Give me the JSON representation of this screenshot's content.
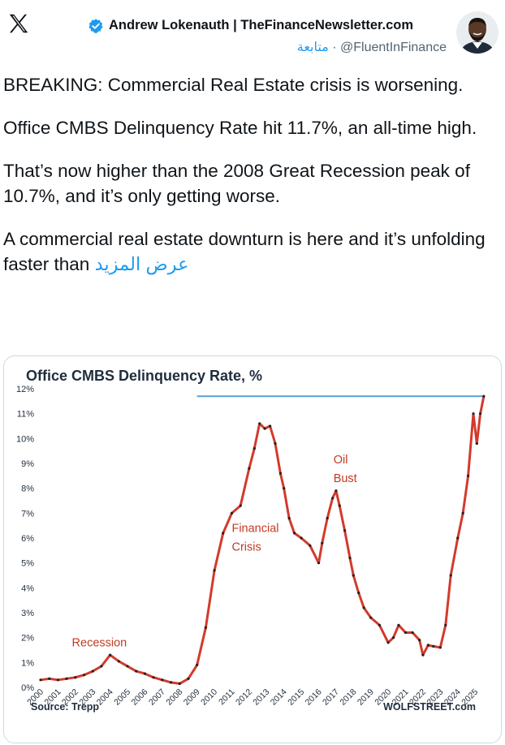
{
  "header": {
    "logo_icon": "x-logo-icon",
    "author_name": "Andrew Lokenauth | TheFinanceNewsletter.com",
    "verified_icon": "verified-badge-icon",
    "follow_label": "متابعة",
    "separator": "·",
    "handle": "@FluentInFinance"
  },
  "tweet": {
    "paragraphs": [
      "BREAKING: Commercial Real Estate crisis is worsening.",
      "Office CMBS Delinquency Rate hit 11.7%, an all-time high.",
      "That’s now higher than the 2008 Great Recession peak of 10.7%, and it’s only getting worse."
    ],
    "last_paragraph": "A commercial real estate downturn is here and it’s unfolding faster than",
    "show_more_label": "عرض المزيد"
  },
  "colors": {
    "brand_blue": "#1d9bf0",
    "series_red": "#d33a2c",
    "annotation_red": "#c23b22",
    "ref_line": "#5aa0d6"
  },
  "chart_data": {
    "type": "line",
    "title": "Office CMBS Delinquency Rate, %",
    "xlabel": "",
    "ylabel": "",
    "ylim": [
      0,
      12
    ],
    "xlim": [
      2000,
      2025.6
    ],
    "yticks": [
      "0%",
      "1%",
      "2%",
      "3%",
      "4%",
      "5%",
      "6%",
      "7%",
      "8%",
      "9%",
      "10%",
      "11%",
      "12%"
    ],
    "xticks": [
      "2000",
      "2001",
      "2002",
      "2003",
      "2004",
      "2005",
      "2006",
      "2007",
      "2008",
      "2009",
      "2010",
      "2011",
      "2012",
      "2013",
      "2014",
      "2015",
      "2016",
      "2017",
      "2018",
      "2019",
      "2020",
      "2021",
      "2022",
      "2023",
      "2024",
      "2025"
    ],
    "grid": false,
    "reference_line": {
      "value": 11.7,
      "from": 2009.0,
      "to": 2025.5
    },
    "annotations": [
      {
        "text": "Recession",
        "x": 2001.8,
        "y": 1.65
      },
      {
        "text": "Financial",
        "x": 2011.0,
        "y": 6.25
      },
      {
        "text": "Crisis",
        "x": 2011.0,
        "y": 5.5
      },
      {
        "text": "Oil",
        "x": 2016.85,
        "y": 9.0
      },
      {
        "text": "Bust",
        "x": 2016.85,
        "y": 8.25
      }
    ],
    "source": "Source: Trepp",
    "credit": "WOLFSTREET.com",
    "series": [
      {
        "name": "Office CMBS Delinquency Rate",
        "x": [
          2000.0,
          2000.5,
          2001.0,
          2001.5,
          2002.0,
          2002.5,
          2003.0,
          2003.5,
          2004.0,
          2004.5,
          2005.0,
          2005.5,
          2006.0,
          2006.5,
          2007.0,
          2007.5,
          2008.0,
          2008.5,
          2009.0,
          2009.5,
          2010.0,
          2010.5,
          2011.0,
          2011.5,
          2012.0,
          2012.3,
          2012.6,
          2012.9,
          2013.2,
          2013.5,
          2013.8,
          2014.0,
          2014.3,
          2014.6,
          2015.0,
          2015.5,
          2016.0,
          2016.2,
          2016.5,
          2016.8,
          2017.0,
          2017.2,
          2017.5,
          2017.8,
          2018.0,
          2018.3,
          2018.6,
          2019.0,
          2019.5,
          2020.0,
          2020.3,
          2020.6,
          2021.0,
          2021.4,
          2021.8,
          2022.0,
          2022.3,
          2022.6,
          2023.0,
          2023.3,
          2023.6,
          2024.0,
          2024.3,
          2024.6,
          2024.9,
          2025.1,
          2025.3,
          2025.5
        ],
        "values": [
          0.3,
          0.35,
          0.3,
          0.35,
          0.4,
          0.5,
          0.65,
          0.85,
          1.3,
          1.05,
          0.85,
          0.65,
          0.55,
          0.4,
          0.3,
          0.2,
          0.15,
          0.35,
          0.9,
          2.4,
          4.7,
          6.2,
          7.0,
          7.3,
          8.8,
          9.6,
          10.6,
          10.4,
          10.5,
          9.8,
          8.6,
          8.0,
          6.8,
          6.2,
          6.0,
          5.7,
          5.0,
          5.8,
          6.8,
          7.6,
          7.9,
          7.3,
          6.3,
          5.2,
          4.5,
          3.8,
          3.2,
          2.8,
          2.5,
          1.8,
          2.0,
          2.5,
          2.2,
          2.2,
          1.9,
          1.3,
          1.7,
          1.65,
          1.6,
          2.5,
          4.5,
          6.0,
          7.0,
          8.5,
          11.0,
          9.8,
          11.0,
          11.7
        ]
      }
    ]
  }
}
